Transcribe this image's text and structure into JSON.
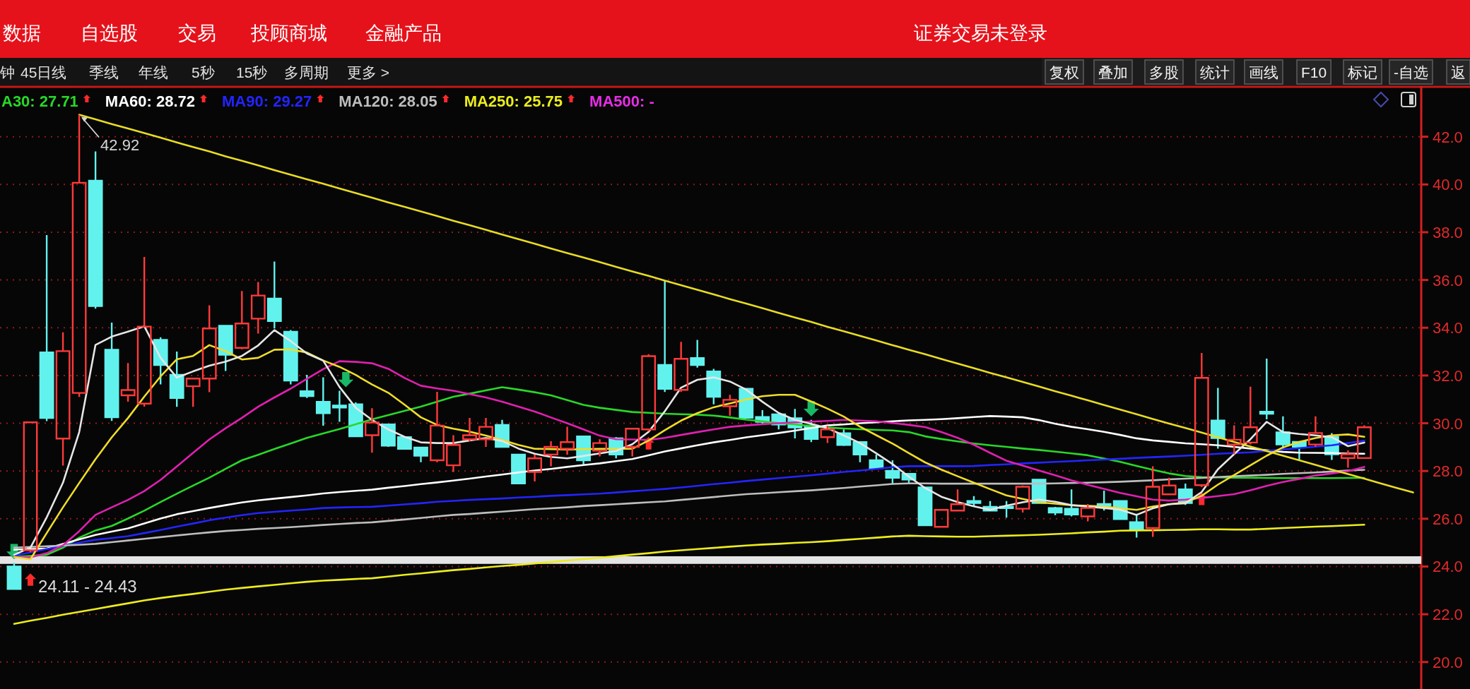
{
  "chart_data": {
    "type": "candlestick",
    "annotations": [
      "数据",
      "自选股",
      "交易",
      "投顾商城",
      "金融产品",
      "证券交易未登录",
      "钟",
      "45日线",
      "季线",
      "年线",
      "5秒",
      "15秒",
      "多周期",
      "更多 >",
      "复权",
      "叠加",
      "多股",
      "统计",
      "画线",
      "F10",
      "标记",
      "-自选",
      "返",
      "42.92",
      "MA500: -"
    ],
    "categories": [
      null,
      null,
      null,
      null,
      null,
      null,
      null,
      null,
      null,
      null,
      null,
      null,
      null,
      null,
      null,
      null,
      null,
      null,
      null,
      null,
      null,
      null,
      null,
      null,
      null,
      null,
      null,
      null,
      null,
      null,
      null,
      null,
      null,
      null,
      null,
      null,
      null,
      null,
      null,
      null,
      null,
      null,
      null,
      null,
      null,
      null,
      null,
      null,
      null,
      null,
      null,
      null,
      null,
      null,
      null,
      null,
      null,
      null,
      null,
      null,
      null,
      null,
      null,
      null,
      null,
      null,
      null,
      null,
      null,
      null,
      null,
      null,
      null,
      null,
      null,
      null,
      null,
      null,
      null,
      null,
      null,
      null,
      null,
      null,
      null,
      null,
      null
    ],
    "ohlc": [
      [
        24.0,
        24.16,
        23.03,
        23.06
      ],
      [
        24.68,
        30.04,
        24.6,
        30.04
      ],
      [
        32.97,
        37.88,
        30.09,
        30.22
      ],
      [
        29.36,
        33.81,
        28.23,
        33.02
      ],
      [
        31.27,
        42.92,
        31.1,
        40.07
      ],
      [
        40.16,
        41.38,
        34.8,
        34.91
      ],
      [
        33.08,
        34.21,
        30.1,
        30.25
      ],
      [
        31.17,
        32.52,
        30.9,
        31.39
      ],
      [
        30.82,
        36.96,
        30.7,
        34.05
      ],
      [
        33.49,
        33.6,
        31.63,
        32.44
      ],
      [
        32.03,
        33.0,
        30.69,
        31.06
      ],
      [
        31.55,
        31.9,
        30.69,
        31.87
      ],
      [
        31.87,
        34.94,
        31.3,
        33.97
      ],
      [
        34.08,
        34.1,
        32.19,
        32.87
      ],
      [
        33.16,
        35.54,
        33.1,
        34.18
      ],
      [
        34.38,
        35.91,
        33.76,
        35.35
      ],
      [
        35.22,
        36.77,
        33.97,
        34.28
      ],
      [
        33.83,
        33.9,
        31.63,
        31.79
      ],
      [
        31.34,
        32.03,
        31.06,
        31.14
      ],
      [
        30.9,
        31.92,
        29.9,
        30.42
      ],
      [
        30.74,
        31.36,
        30.06,
        30.66
      ],
      [
        30.79,
        30.87,
        29.43,
        29.45
      ],
      [
        29.5,
        30.63,
        28.77,
        30.03
      ],
      [
        29.95,
        29.97,
        29.01,
        29.06
      ],
      [
        29.42,
        29.45,
        28.9,
        28.93
      ],
      [
        28.98,
        28.98,
        28.37,
        28.64
      ],
      [
        28.45,
        31.32,
        28.37,
        29.9
      ],
      [
        28.24,
        29.5,
        27.96,
        29.09
      ],
      [
        29.33,
        30.22,
        29.25,
        29.5
      ],
      [
        29.33,
        30.22,
        29.01,
        29.85
      ],
      [
        29.93,
        30.14,
        29.0,
        29.01
      ],
      [
        28.69,
        28.7,
        27.45,
        27.48
      ],
      [
        27.96,
        28.69,
        27.56,
        28.53
      ],
      [
        28.69,
        29.25,
        28.2,
        29.01
      ],
      [
        28.93,
        29.85,
        28.69,
        29.21
      ],
      [
        29.45,
        29.45,
        28.28,
        28.45
      ],
      [
        28.85,
        29.33,
        28.61,
        29.17
      ],
      [
        29.37,
        29.42,
        28.53,
        28.69
      ],
      [
        29.01,
        29.8,
        28.61,
        29.77
      ],
      [
        29.74,
        32.89,
        29.66,
        32.81
      ],
      [
        32.44,
        35.96,
        31.31,
        31.44
      ],
      [
        31.4,
        33.41,
        31.31,
        32.7
      ],
      [
        32.73,
        33.49,
        32.33,
        32.44
      ],
      [
        32.17,
        32.28,
        30.79,
        31.11
      ],
      [
        30.71,
        31.19,
        30.31,
        30.98
      ],
      [
        31.44,
        31.45,
        30.2,
        30.23
      ],
      [
        30.26,
        30.55,
        29.98,
        30.06
      ],
      [
        30.37,
        30.4,
        29.74,
        29.95
      ],
      [
        30.21,
        30.6,
        29.37,
        29.82
      ],
      [
        29.9,
        30.14,
        29.21,
        29.34
      ],
      [
        29.42,
        29.9,
        29.17,
        29.74
      ],
      [
        29.58,
        29.74,
        29.05,
        29.09
      ],
      [
        29.21,
        29.22,
        28.37,
        28.69
      ],
      [
        28.45,
        28.69,
        28.07,
        28.12
      ],
      [
        28.01,
        28.45,
        27.43,
        27.72
      ],
      [
        27.88,
        27.9,
        27.47,
        27.64
      ],
      [
        27.31,
        27.32,
        25.7,
        25.73
      ],
      [
        25.66,
        26.4,
        25.65,
        26.37
      ],
      [
        26.34,
        27.23,
        26.31,
        26.61
      ],
      [
        26.74,
        26.95,
        26.5,
        26.66
      ],
      [
        26.5,
        26.74,
        26.31,
        26.34
      ],
      [
        26.5,
        26.74,
        26.05,
        26.45
      ],
      [
        26.42,
        27.39,
        26.26,
        27.34
      ],
      [
        27.64,
        27.65,
        26.65,
        26.66
      ],
      [
        26.45,
        26.5,
        26.15,
        26.26
      ],
      [
        26.42,
        27.23,
        26.1,
        26.18
      ],
      [
        26.1,
        26.62,
        25.89,
        26.45
      ],
      [
        26.62,
        27.18,
        26.34,
        26.55
      ],
      [
        26.74,
        26.75,
        25.98,
        25.99
      ],
      [
        25.86,
        26.21,
        25.21,
        25.56
      ],
      [
        25.61,
        28.2,
        25.24,
        27.34
      ],
      [
        27.02,
        27.72,
        26.99,
        27.39
      ],
      [
        27.23,
        27.47,
        26.58,
        26.66
      ],
      [
        27.41,
        32.94,
        27.33,
        31.9
      ],
      [
        30.11,
        31.48,
        28.94,
        29.38
      ],
      [
        29.11,
        29.91,
        28.7,
        29.31
      ],
      [
        29.19,
        31.53,
        29.11,
        29.83
      ],
      [
        30.48,
        32.71,
        30.16,
        30.4
      ],
      [
        29.62,
        30.29,
        28.94,
        29.11
      ],
      [
        29.22,
        29.23,
        28.46,
        29.02
      ],
      [
        29.11,
        30.29,
        29.02,
        29.59
      ],
      [
        29.43,
        29.59,
        28.46,
        28.7
      ],
      [
        28.54,
        28.86,
        28.14,
        28.7
      ],
      [
        28.54,
        29.91,
        28.51,
        29.83
      ],
      null,
      null,
      null
    ],
    "series": [
      {
        "type": "line",
        "name": "A30: 27.71",
        "color": "#28d828",
        "values": [
          24.4,
          24.44,
          24.49,
          24.79,
          25.21,
          25.51,
          25.7,
          26.01,
          26.34,
          26.7,
          27.05,
          27.39,
          27.72,
          28.09,
          28.45,
          28.68,
          28.92,
          29.15,
          29.39,
          29.57,
          29.76,
          29.96,
          30.16,
          30.34,
          30.52,
          30.7,
          30.9,
          31.11,
          31.24,
          31.38,
          31.51,
          31.41,
          31.3,
          31.17,
          30.97,
          30.77,
          30.65,
          30.56,
          30.47,
          30.44,
          30.4,
          30.38,
          30.36,
          30.32,
          30.24,
          30.15,
          30.08,
          30.01,
          29.95,
          29.88,
          29.82,
          29.78,
          29.75,
          29.72,
          29.7,
          29.63,
          29.45,
          29.34,
          29.24,
          29.15,
          29.08,
          29.01,
          28.94,
          28.88,
          28.81,
          28.74,
          28.66,
          28.52,
          28.38,
          28.21,
          28.05,
          27.9,
          27.79,
          27.75,
          27.73,
          27.72,
          27.72,
          27.71,
          27.7,
          27.7,
          27.7,
          27.7,
          27.71,
          27.71,
          null,
          null,
          null
        ]
      },
      {
        "type": "line",
        "name": "MA60: 28.72",
        "color": "#ffffff",
        "values": [
          24.7,
          24.73,
          24.75,
          24.95,
          25.14,
          25.32,
          25.46,
          25.6,
          25.8,
          26.01,
          26.19,
          26.32,
          26.45,
          26.57,
          26.68,
          26.77,
          26.84,
          26.91,
          26.98,
          27.06,
          27.12,
          27.17,
          27.22,
          27.3,
          27.37,
          27.45,
          27.52,
          27.6,
          27.68,
          27.77,
          27.85,
          27.94,
          28.02,
          28.09,
          28.17,
          28.25,
          28.32,
          28.41,
          28.5,
          28.66,
          28.82,
          28.95,
          29.08,
          29.2,
          29.3,
          29.41,
          29.5,
          29.59,
          29.69,
          29.8,
          29.91,
          29.95,
          30.0,
          30.04,
          30.08,
          30.12,
          30.14,
          30.17,
          30.21,
          30.26,
          30.3,
          30.28,
          30.25,
          30.13,
          29.98,
          29.85,
          29.75,
          29.64,
          29.51,
          29.37,
          29.28,
          29.22,
          29.16,
          29.12,
          29.08,
          29.01,
          28.94,
          28.87,
          28.8,
          28.77,
          28.76,
          28.75,
          28.73,
          28.72,
          null,
          null,
          null
        ]
      },
      {
        "type": "line",
        "name": "MA90: 29.27",
        "color": "#2424ff",
        "values": [
          24.45,
          24.59,
          24.73,
          24.86,
          25.0,
          25.12,
          25.19,
          25.27,
          25.4,
          25.53,
          25.67,
          25.8,
          25.94,
          26.05,
          26.15,
          26.24,
          26.29,
          26.34,
          26.39,
          26.45,
          26.47,
          26.49,
          26.5,
          26.55,
          26.6,
          26.65,
          26.71,
          26.75,
          26.79,
          26.82,
          26.85,
          26.89,
          26.92,
          26.96,
          26.99,
          27.02,
          27.05,
          27.1,
          27.15,
          27.2,
          27.25,
          27.31,
          27.38,
          27.45,
          27.51,
          27.58,
          27.64,
          27.7,
          27.76,
          27.82,
          27.89,
          27.96,
          28.02,
          28.09,
          28.16,
          28.2,
          28.2,
          28.2,
          28.2,
          28.21,
          28.25,
          28.28,
          28.32,
          28.35,
          28.38,
          28.41,
          28.45,
          28.48,
          28.51,
          28.55,
          28.58,
          28.61,
          28.64,
          28.68,
          28.72,
          28.75,
          28.78,
          28.84,
          28.9,
          28.96,
          29.02,
          29.08,
          29.17,
          29.27,
          null,
          null,
          null
        ]
      },
      {
        "type": "line",
        "name": "MA120: 28.05",
        "color": "#bdbdbd",
        "values": [
          24.79,
          24.82,
          24.85,
          24.88,
          24.91,
          24.95,
          25.02,
          25.09,
          25.16,
          25.23,
          25.3,
          25.37,
          25.43,
          25.49,
          25.53,
          25.58,
          25.61,
          25.65,
          25.69,
          25.74,
          25.78,
          25.82,
          25.85,
          25.91,
          25.97,
          26.03,
          26.1,
          26.16,
          26.2,
          26.25,
          26.3,
          26.35,
          26.4,
          26.44,
          26.48,
          26.53,
          26.57,
          26.61,
          26.65,
          26.69,
          26.73,
          26.79,
          26.85,
          26.91,
          26.97,
          27.03,
          27.07,
          27.11,
          27.15,
          27.19,
          27.24,
          27.29,
          27.35,
          27.4,
          27.46,
          27.48,
          27.48,
          27.47,
          27.47,
          27.47,
          27.47,
          27.47,
          27.47,
          27.47,
          27.48,
          27.5,
          27.51,
          27.53,
          27.55,
          27.58,
          27.61,
          27.65,
          27.68,
          27.71,
          27.75,
          27.78,
          27.81,
          27.84,
          27.88,
          27.91,
          27.94,
          27.98,
          28.02,
          28.05,
          null,
          null,
          null
        ]
      },
      {
        "type": "line",
        "name": "MA250: 25.75",
        "color": "#ecec1e",
        "values": [
          21.6,
          21.73,
          21.85,
          21.98,
          22.1,
          22.22,
          22.34,
          22.46,
          22.58,
          22.68,
          22.77,
          22.85,
          22.94,
          23.03,
          23.1,
          23.17,
          23.23,
          23.3,
          23.36,
          23.41,
          23.44,
          23.48,
          23.51,
          23.58,
          23.65,
          23.71,
          23.78,
          23.85,
          23.9,
          23.96,
          24.02,
          24.07,
          24.13,
          24.19,
          24.25,
          24.31,
          24.37,
          24.43,
          24.5,
          24.56,
          24.63,
          24.68,
          24.73,
          24.78,
          24.83,
          24.88,
          24.92,
          24.95,
          24.99,
          25.02,
          25.06,
          25.11,
          25.16,
          25.21,
          25.26,
          25.29,
          25.27,
          25.26,
          25.25,
          25.25,
          25.27,
          25.29,
          25.31,
          25.33,
          25.36,
          25.39,
          25.43,
          25.46,
          25.5,
          25.51,
          25.52,
          25.53,
          25.54,
          25.56,
          25.56,
          25.55,
          25.55,
          25.58,
          25.61,
          25.64,
          25.67,
          25.69,
          25.72,
          25.75,
          null,
          null,
          null
        ]
      },
      {
        "type": "line",
        "color": "#e020b0",
        "values": [
          24.4,
          24.38,
          24.56,
          24.89,
          25.48,
          26.16,
          26.48,
          26.79,
          27.16,
          27.63,
          28.19,
          28.76,
          29.32,
          29.79,
          30.23,
          30.69,
          31.08,
          31.45,
          31.86,
          32.27,
          32.6,
          32.57,
          32.51,
          32.28,
          31.9,
          31.57,
          31.46,
          31.36,
          31.22,
          31.08,
          30.9,
          30.7,
          30.49,
          30.24,
          30.0,
          29.74,
          29.48,
          29.33,
          29.32,
          29.3,
          29.39,
          29.51,
          29.63,
          29.74,
          29.85,
          29.91,
          29.96,
          30.0,
          30.04,
          30.07,
          30.1,
          30.14,
          30.11,
          30.08,
          30.01,
          29.93,
          29.84,
          29.63,
          29.39,
          29.1,
          28.76,
          28.43,
          28.23,
          28.02,
          27.82,
          27.61,
          27.42,
          27.25,
          27.08,
          26.94,
          26.8,
          26.76,
          26.8,
          26.87,
          26.95,
          27.03,
          27.19,
          27.38,
          27.54,
          27.67,
          27.81,
          27.9,
          27.99,
          28.17,
          null,
          null,
          null
        ]
      },
      {
        "type": "line",
        "color": "#f0dc28",
        "values": [
          24.4,
          24.3,
          25.4,
          26.48,
          27.5,
          28.49,
          29.41,
          30.22,
          31.12,
          31.96,
          32.68,
          32.82,
          33.27,
          33.02,
          32.67,
          32.74,
          33.08,
          33.09,
          32.96,
          32.63,
          32.36,
          32.02,
          31.62,
          31.28,
          30.78,
          30.25,
          29.93,
          29.77,
          29.65,
          29.48,
          29.3,
          29.09,
          28.93,
          28.92,
          28.9,
          28.91,
          28.93,
          28.93,
          28.93,
          29.27,
          29.71,
          30.11,
          30.42,
          30.67,
          30.83,
          31.0,
          31.13,
          31.19,
          31.19,
          30.91,
          30.61,
          30.28,
          29.86,
          29.5,
          29.15,
          28.75,
          28.36,
          28.06,
          27.78,
          27.51,
          27.24,
          26.98,
          26.83,
          26.69,
          26.63,
          26.57,
          26.54,
          26.51,
          26.44,
          26.37,
          26.51,
          26.61,
          26.68,
          26.96,
          27.43,
          27.83,
          28.24,
          28.64,
          28.99,
          29.22,
          29.38,
          29.49,
          29.53,
          29.43,
          null,
          null,
          null
        ]
      },
      {
        "type": "line",
        "color": "#e6e6e6",
        "values": [
          24.49,
          24.79,
          26.06,
          27.51,
          29.63,
          33.28,
          33.63,
          33.84,
          34.06,
          32.74,
          31.91,
          32.17,
          32.41,
          32.58,
          32.82,
          33.26,
          33.9,
          33.44,
          32.92,
          32.62,
          31.52,
          30.65,
          30.14,
          29.74,
          29.43,
          29.2,
          29.17,
          29.17,
          29.28,
          29.38,
          29.26,
          28.94,
          28.72,
          28.59,
          28.53,
          28.63,
          28.74,
          28.84,
          29.12,
          29.64,
          30.5,
          31.49,
          31.82,
          31.92,
          31.75,
          31.41,
          30.9,
          30.43,
          30.14,
          29.97,
          29.79,
          29.49,
          29.17,
          28.74,
          28.29,
          27.76,
          27.29,
          26.92,
          26.7,
          26.52,
          26.37,
          26.55,
          26.69,
          26.8,
          26.71,
          26.57,
          26.51,
          26.45,
          26.38,
          26.16,
          26.44,
          26.61,
          26.65,
          27.12,
          28.07,
          28.71,
          29.33,
          30.06,
          29.63,
          29.55,
          29.49,
          29.42,
          29.04,
          29.19,
          null,
          null,
          null
        ]
      },
      {
        "type": "line",
        "color": "#e8dc24",
        "values": [
          null,
          null,
          null,
          null,
          42.92,
          42.73,
          42.53,
          42.34,
          42.15,
          41.96,
          41.76,
          41.57,
          41.38,
          41.18,
          40.99,
          40.8,
          40.6,
          40.41,
          40.22,
          40.03,
          39.83,
          39.64,
          39.45,
          39.25,
          39.06,
          38.87,
          38.68,
          38.48,
          38.29,
          38.1,
          37.9,
          37.71,
          37.52,
          37.32,
          37.13,
          36.94,
          36.75,
          36.55,
          36.36,
          36.17,
          35.97,
          35.78,
          35.59,
          35.4,
          35.2,
          35.01,
          34.82,
          34.62,
          34.43,
          34.24,
          34.04,
          33.85,
          33.66,
          33.47,
          33.27,
          33.08,
          32.89,
          32.69,
          32.5,
          32.31,
          32.11,
          31.92,
          31.73,
          31.54,
          31.34,
          31.15,
          30.96,
          30.76,
          30.57,
          30.38,
          30.18,
          29.99,
          29.8,
          29.61,
          29.41,
          29.22,
          29.03,
          28.83,
          28.64,
          28.45,
          28.26,
          28.06,
          27.87,
          27.68,
          27.48,
          27.29,
          27.1
        ]
      }
    ],
    "bands": [
      {
        "axis": "y",
        "from": 24.11,
        "to": 24.43,
        "label": "24.11 - 24.43",
        "color": "#e4e4e4"
      }
    ],
    "ylim": [
      18.9,
      44
    ],
    "yticks": [
      {
        "value": 20,
        "label": "20.0"
      },
      {
        "value": 22,
        "label": "22.0"
      },
      {
        "value": 24,
        "label": "24.0"
      },
      {
        "value": 26,
        "label": "26.0"
      },
      {
        "value": 28,
        "label": "28.0"
      },
      {
        "value": 30,
        "label": "30.0"
      },
      {
        "value": 32,
        "label": "32.0"
      },
      {
        "value": 34,
        "label": "34.0"
      },
      {
        "value": 36,
        "label": "36.0"
      },
      {
        "value": 38,
        "label": "38.0"
      },
      {
        "value": 40,
        "label": "40.0"
      },
      {
        "value": 42,
        "label": "42.0"
      }
    ],
    "grid": "y",
    "legend": "top left",
    "tick_labels": "y"
  }
}
